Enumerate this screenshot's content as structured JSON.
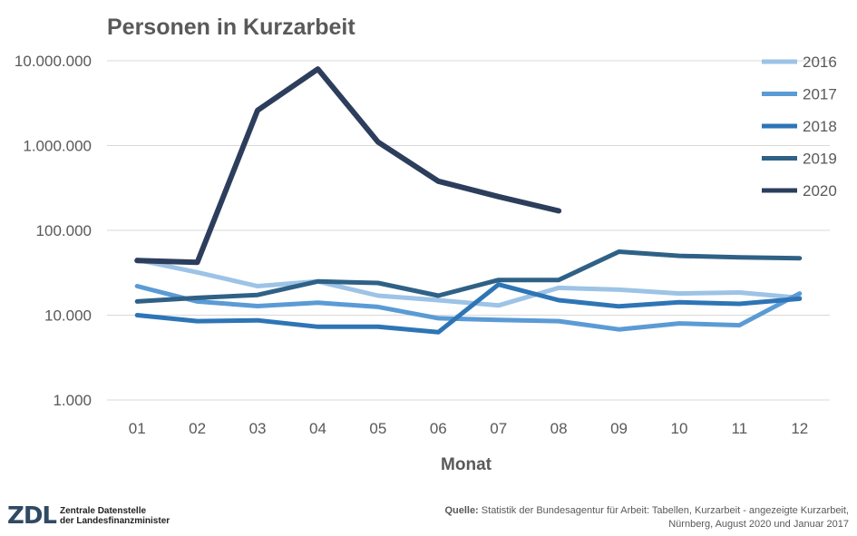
{
  "chart_data": {
    "type": "line",
    "title": "Personen in Kurzarbeit",
    "xlabel": "Monat",
    "ylabel": "",
    "yscale": "log",
    "ylim": [
      1000,
      10000000
    ],
    "yticks": [
      1000,
      10000,
      100000,
      1000000,
      10000000
    ],
    "ytick_labels": [
      "1.000",
      "10.000",
      "100.000",
      "1.000.000",
      "10.000.000"
    ],
    "categories": [
      "01",
      "02",
      "03",
      "04",
      "05",
      "06",
      "07",
      "08",
      "09",
      "10",
      "11",
      "12"
    ],
    "grid": "horizontal",
    "legend_position": "right",
    "series": [
      {
        "name": "2016",
        "color": "#9dc3e6",
        "values": [
          45000,
          32000,
          22000,
          25000,
          17000,
          15000,
          13000,
          21000,
          20000,
          18000,
          18500,
          16000
        ]
      },
      {
        "name": "2017",
        "color": "#5b9bd5",
        "values": [
          22000,
          14500,
          12800,
          14000,
          12500,
          9200,
          8800,
          8500,
          6800,
          8000,
          7600,
          18000
        ]
      },
      {
        "name": "2018",
        "color": "#2e75b6",
        "values": [
          10000,
          8500,
          8700,
          7300,
          7300,
          6300,
          23000,
          15000,
          12700,
          14200,
          13600,
          15600
        ]
      },
      {
        "name": "2019",
        "color": "#2f6186",
        "values": [
          14500,
          16000,
          17300,
          25000,
          24000,
          17000,
          26000,
          26000,
          56000,
          50000,
          48000,
          47000
        ]
      },
      {
        "name": "2020",
        "color": "#2c3e5c",
        "values": [
          44000,
          42000,
          2600000,
          8000000,
          1100000,
          380000,
          250000,
          170000,
          null,
          null,
          null,
          null
        ]
      }
    ]
  },
  "footer": {
    "logo_mark": "ZDL",
    "logo_line1": "Zentrale Datenstelle",
    "logo_line2": "der Landesfinanzminister",
    "source_label": "Quelle:",
    "source_line1": "Statistik der Bundesagentur für Arbeit: Tabellen, Kurzarbeit - angezeigte Kurzarbeit,",
    "source_line2": "Nürnberg, August 2020 und Januar 2017"
  }
}
